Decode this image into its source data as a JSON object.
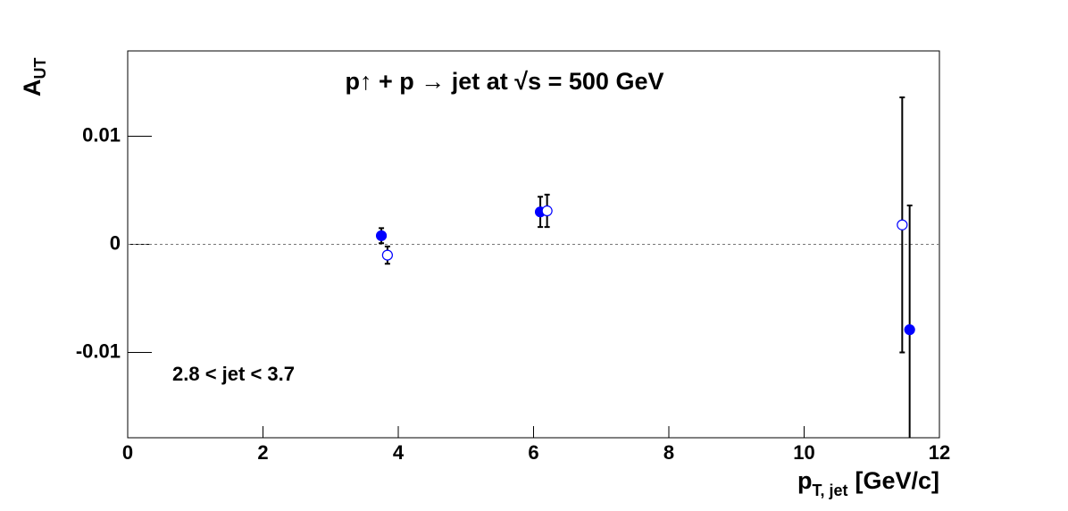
{
  "chart_data": {
    "type": "scatter",
    "title": "p↑ + p → jet at √s = 500 GeV",
    "x_label": {
      "main": "p",
      "sub": "T, jet",
      "unit": "[GeV/c]"
    },
    "y_label": {
      "main": "A",
      "sub": "UT"
    },
    "annotation": "2.8 < jet < 3.7",
    "xlim": [
      0,
      12
    ],
    "ylim": [
      -0.0179,
      0.0179
    ],
    "xticks": [
      0,
      2,
      4,
      6,
      8,
      10,
      12
    ],
    "yticks": [
      -0.01,
      0,
      0.01
    ],
    "zero_line": true,
    "series": [
      {
        "color": "#0000ff",
        "marker": "filled",
        "x": [
          3.75,
          6.1,
          11.56
        ],
        "values": [
          0.0008,
          0.003,
          -0.0079
        ],
        "errors": [
          0.0007,
          0.0014,
          0.0115
        ]
      },
      {
        "color": "#0000ff",
        "marker": "open",
        "x": [
          3.84,
          6.2,
          11.45
        ],
        "values": [
          -0.001,
          0.0031,
          0.0018
        ],
        "errors": [
          0.0008,
          0.0015,
          0.0118
        ]
      }
    ]
  }
}
